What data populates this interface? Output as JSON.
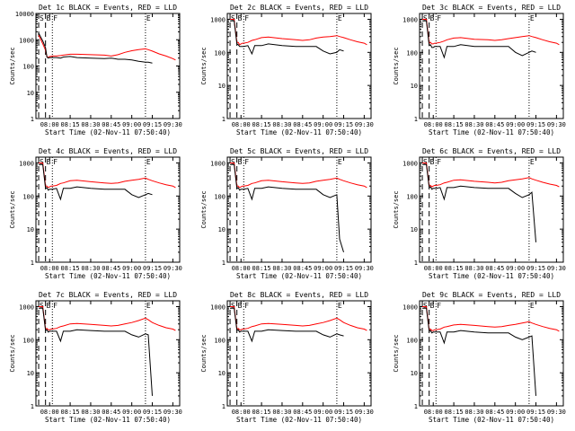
{
  "figure": {
    "xlabel": "Start Time (02-Nov-11 07:50:40)",
    "ylabel": "Counts/sec",
    "colors": {
      "events": "#000000",
      "lld": "#ff0000",
      "background": "#ffffff",
      "axes": "#000000"
    },
    "marker_labels": [
      "S",
      "B",
      "F",
      "E"
    ]
  },
  "chart_data": [
    {
      "type": "line",
      "title": "Det 1c BLACK = Events, RED = LLD",
      "x": [
        "07:52",
        "07:55",
        "07:57",
        "07:58",
        "07:59",
        "08:00",
        "08:01",
        "08:02",
        "08:05",
        "08:08",
        "08:10",
        "08:15",
        "08:20",
        "08:30",
        "08:40",
        "08:45",
        "08:50",
        "08:55",
        "09:00",
        "09:05",
        "09:10",
        "09:12",
        "09:15",
        "09:20",
        "09:25",
        "09:30",
        "09:32"
      ],
      "xticks": [
        "08:00",
        "08:15",
        "08:30",
        "08:45",
        "09:00",
        "09:15",
        "09:30"
      ],
      "yticks": [
        "1",
        "10",
        "100",
        "1000",
        "10000"
      ],
      "ylim": [
        1,
        10000
      ],
      "yscale": "log",
      "markers": [
        "07:52",
        "07:57",
        "08:02",
        "09:10"
      ],
      "series": [
        {
          "role": "lld",
          "values": [
            1500,
            700,
            400,
            230,
            210,
            230,
            230,
            240,
            240,
            250,
            260,
            280,
            280,
            270,
            260,
            240,
            270,
            330,
            380,
            420,
            450,
            420,
            370,
            290,
            240,
            190,
            170
          ]
        },
        {
          "role": "events",
          "values": [
            1800,
            900,
            500,
            220,
            200,
            210,
            210,
            210,
            210,
            200,
            220,
            230,
            210,
            200,
            190,
            200,
            180,
            180,
            170,
            150,
            140,
            140,
            130,
            null,
            null,
            null,
            null
          ]
        }
      ]
    },
    {
      "type": "line",
      "title": "Det 2c BLACK = Events, RED = LLD",
      "x": [
        "07:52",
        "07:55",
        "07:57",
        "07:58",
        "07:59",
        "08:00",
        "08:01",
        "08:02",
        "08:05",
        "08:08",
        "08:10",
        "08:15",
        "08:20",
        "08:30",
        "08:40",
        "08:45",
        "08:50",
        "08:55",
        "09:00",
        "09:05",
        "09:10",
        "09:12",
        "09:15",
        "09:20",
        "09:25",
        "09:30",
        "09:32"
      ],
      "xticks": [
        "08:00",
        "08:15",
        "08:30",
        "08:45",
        "09:00",
        "09:15",
        "09:30"
      ],
      "yticks": [
        "1",
        "10",
        "100",
        "1000"
      ],
      "ylim": [
        1,
        1500
      ],
      "yscale": "log",
      "markers": [
        "07:52",
        "07:57",
        "08:02",
        "09:10"
      ],
      "series": [
        {
          "role": "lld",
          "values": [
            1000,
            1000,
            200,
            200,
            170,
            180,
            190,
            190,
            200,
            230,
            240,
            280,
            290,
            260,
            240,
            230,
            240,
            270,
            290,
            300,
            320,
            300,
            280,
            240,
            210,
            190,
            170
          ]
        },
        {
          "role": "events",
          "values": [
            900,
            900,
            180,
            170,
            150,
            150,
            150,
            150,
            160,
            90,
            160,
            160,
            180,
            160,
            150,
            150,
            150,
            150,
            110,
            90,
            100,
            120,
            110,
            null,
            null,
            null,
            null
          ]
        }
      ]
    },
    {
      "type": "line",
      "title": "Det 3c BLACK = Events, RED = LLD",
      "x": [
        "07:52",
        "07:55",
        "07:57",
        "07:58",
        "07:59",
        "08:00",
        "08:01",
        "08:02",
        "08:05",
        "08:08",
        "08:10",
        "08:15",
        "08:20",
        "08:30",
        "08:40",
        "08:45",
        "08:50",
        "08:55",
        "09:00",
        "09:05",
        "09:10",
        "09:12",
        "09:15",
        "09:20",
        "09:25",
        "09:30",
        "09:32"
      ],
      "xticks": [
        "08:00",
        "08:15",
        "08:30",
        "08:45",
        "09:00",
        "09:15",
        "09:30"
      ],
      "yticks": [
        "1",
        "10",
        "100",
        "1000"
      ],
      "ylim": [
        1,
        1500
      ],
      "yscale": "log",
      "markers": [
        "07:52",
        "07:57",
        "08:02",
        "09:10"
      ],
      "series": [
        {
          "role": "lld",
          "values": [
            1000,
            1000,
            190,
            200,
            180,
            180,
            190,
            190,
            200,
            220,
            240,
            270,
            280,
            250,
            240,
            230,
            240,
            260,
            280,
            300,
            320,
            300,
            280,
            240,
            210,
            190,
            170
          ]
        },
        {
          "role": "events",
          "values": [
            900,
            900,
            160,
            170,
            140,
            140,
            150,
            150,
            150,
            70,
            150,
            150,
            170,
            150,
            150,
            150,
            150,
            150,
            100,
            80,
            100,
            110,
            100,
            null,
            null,
            null,
            null
          ]
        }
      ]
    },
    {
      "type": "line",
      "title": "Det 4c BLACK = Events, RED = LLD",
      "x": [
        "07:52",
        "07:55",
        "07:57",
        "07:58",
        "07:59",
        "08:00",
        "08:01",
        "08:02",
        "08:05",
        "08:08",
        "08:10",
        "08:15",
        "08:20",
        "08:30",
        "08:40",
        "08:45",
        "08:50",
        "08:55",
        "09:00",
        "09:05",
        "09:10",
        "09:12",
        "09:15",
        "09:20",
        "09:25",
        "09:30",
        "09:32"
      ],
      "xticks": [
        "08:00",
        "08:15",
        "08:30",
        "08:45",
        "09:00",
        "09:15",
        "09:30"
      ],
      "yticks": [
        "1",
        "10",
        "100",
        "1000"
      ],
      "ylim": [
        1,
        1500
      ],
      "yscale": "log",
      "markers": [
        "07:52",
        "07:57",
        "08:02",
        "09:10"
      ],
      "series": [
        {
          "role": "lld",
          "values": [
            1000,
            1000,
            200,
            200,
            180,
            190,
            200,
            200,
            210,
            240,
            250,
            290,
            300,
            270,
            250,
            240,
            250,
            280,
            300,
            320,
            350,
            320,
            290,
            250,
            220,
            200,
            180
          ]
        },
        {
          "role": "events",
          "values": [
            900,
            900,
            170,
            180,
            150,
            160,
            160,
            160,
            170,
            80,
            170,
            170,
            190,
            170,
            160,
            160,
            160,
            160,
            110,
            90,
            110,
            120,
            110,
            null,
            null,
            null,
            null
          ]
        }
      ]
    },
    {
      "type": "line",
      "title": "Det 5c BLACK = Events, RED = LLD",
      "x": [
        "07:52",
        "07:55",
        "07:57",
        "07:58",
        "07:59",
        "08:00",
        "08:01",
        "08:02",
        "08:05",
        "08:08",
        "08:10",
        "08:15",
        "08:20",
        "08:30",
        "08:40",
        "08:45",
        "08:50",
        "08:55",
        "09:00",
        "09:05",
        "09:10",
        "09:12",
        "09:15",
        "09:20",
        "09:25",
        "09:30",
        "09:32"
      ],
      "xticks": [
        "08:00",
        "08:15",
        "08:30",
        "08:45",
        "09:00",
        "09:15",
        "09:30"
      ],
      "yticks": [
        "1",
        "10",
        "100",
        "1000"
      ],
      "ylim": [
        1,
        1500
      ],
      "yscale": "log",
      "markers": [
        "07:52",
        "07:57",
        "08:02",
        "09:10"
      ],
      "series": [
        {
          "role": "lld",
          "values": [
            1000,
            1000,
            200,
            200,
            180,
            190,
            200,
            200,
            210,
            240,
            250,
            290,
            300,
            270,
            250,
            240,
            250,
            280,
            300,
            320,
            350,
            320,
            290,
            250,
            220,
            200,
            180
          ]
        },
        {
          "role": "events",
          "values": [
            900,
            900,
            170,
            180,
            150,
            160,
            160,
            160,
            170,
            80,
            170,
            170,
            190,
            170,
            160,
            160,
            160,
            160,
            110,
            90,
            110,
            5,
            2,
            null,
            null,
            null,
            null
          ]
        }
      ]
    },
    {
      "type": "line",
      "title": "Det 6c BLACK = Events, RED = LLD",
      "x": [
        "07:52",
        "07:55",
        "07:57",
        "07:58",
        "07:59",
        "08:00",
        "08:01",
        "08:02",
        "08:05",
        "08:08",
        "08:10",
        "08:15",
        "08:20",
        "08:30",
        "08:40",
        "08:45",
        "08:50",
        "08:55",
        "09:00",
        "09:05",
        "09:10",
        "09:12",
        "09:15",
        "09:20",
        "09:25",
        "09:30",
        "09:32"
      ],
      "xticks": [
        "08:00",
        "08:15",
        "08:30",
        "08:45",
        "09:00",
        "09:15",
        "09:30"
      ],
      "yticks": [
        "1",
        "10",
        "100",
        "1000"
      ],
      "ylim": [
        1,
        1500
      ],
      "yscale": "log",
      "markers": [
        "07:52",
        "07:57",
        "08:02",
        "09:10"
      ],
      "series": [
        {
          "role": "lld",
          "values": [
            1000,
            1000,
            200,
            210,
            190,
            200,
            210,
            210,
            220,
            250,
            260,
            300,
            310,
            280,
            260,
            250,
            260,
            290,
            310,
            330,
            360,
            330,
            300,
            260,
            230,
            210,
            190
          ]
        },
        {
          "role": "events",
          "values": [
            900,
            900,
            180,
            190,
            160,
            170,
            170,
            170,
            180,
            80,
            180,
            180,
            200,
            180,
            170,
            170,
            170,
            170,
            120,
            90,
            110,
            130,
            4,
            null,
            null,
            null,
            null
          ]
        }
      ]
    },
    {
      "type": "line",
      "title": "Det 7c BLACK = Events, RED = LLD",
      "x": [
        "07:52",
        "07:55",
        "07:57",
        "07:58",
        "07:59",
        "08:00",
        "08:01",
        "08:02",
        "08:05",
        "08:08",
        "08:10",
        "08:15",
        "08:20",
        "08:30",
        "08:40",
        "08:45",
        "08:50",
        "08:55",
        "09:00",
        "09:05",
        "09:10",
        "09:12",
        "09:15",
        "09:20",
        "09:25",
        "09:30",
        "09:32"
      ],
      "xticks": [
        "08:00",
        "08:15",
        "08:30",
        "08:45",
        "09:00",
        "09:15",
        "09:30"
      ],
      "yticks": [
        "1",
        "10",
        "100",
        "1000"
      ],
      "ylim": [
        1,
        1500
      ],
      "yscale": "log",
      "markers": [
        "07:52",
        "07:57",
        "08:02",
        "09:10"
      ],
      "series": [
        {
          "role": "lld",
          "values": [
            1000,
            1000,
            210,
            220,
            200,
            200,
            210,
            210,
            220,
            250,
            260,
            300,
            310,
            290,
            270,
            260,
            270,
            300,
            330,
            380,
            450,
            400,
            330,
            270,
            230,
            210,
            190
          ]
        },
        {
          "role": "events",
          "values": [
            900,
            900,
            190,
            200,
            170,
            180,
            180,
            180,
            180,
            90,
            180,
            180,
            200,
            190,
            180,
            180,
            180,
            180,
            140,
            120,
            150,
            140,
            2,
            null,
            null,
            null,
            null
          ]
        }
      ]
    },
    {
      "type": "line",
      "title": "Det 8c BLACK = Events, RED = LLD",
      "x": [
        "07:52",
        "07:55",
        "07:57",
        "07:58",
        "07:59",
        "08:00",
        "08:01",
        "08:02",
        "08:05",
        "08:08",
        "08:10",
        "08:15",
        "08:20",
        "08:30",
        "08:40",
        "08:45",
        "08:50",
        "08:55",
        "09:00",
        "09:05",
        "09:10",
        "09:12",
        "09:15",
        "09:20",
        "09:25",
        "09:30",
        "09:32"
      ],
      "xticks": [
        "08:00",
        "08:15",
        "08:30",
        "08:45",
        "09:00",
        "09:15",
        "09:30"
      ],
      "yticks": [
        "1",
        "10",
        "100",
        "1000"
      ],
      "ylim": [
        1,
        1500
      ],
      "yscale": "log",
      "markers": [
        "07:52",
        "07:57",
        "08:02",
        "09:10"
      ],
      "series": [
        {
          "role": "lld",
          "values": [
            1000,
            1000,
            210,
            220,
            200,
            200,
            210,
            210,
            220,
            250,
            260,
            300,
            310,
            290,
            270,
            260,
            270,
            300,
            330,
            380,
            450,
            400,
            330,
            270,
            230,
            210,
            190
          ]
        },
        {
          "role": "events",
          "values": [
            900,
            900,
            190,
            200,
            170,
            180,
            180,
            180,
            180,
            90,
            180,
            180,
            200,
            190,
            180,
            180,
            180,
            180,
            140,
            120,
            150,
            140,
            130,
            null,
            null,
            null,
            null
          ]
        }
      ]
    },
    {
      "type": "line",
      "title": "Det 9c BLACK = Events, RED = LLD",
      "x": [
        "07:52",
        "07:55",
        "07:57",
        "07:58",
        "07:59",
        "08:00",
        "08:01",
        "08:02",
        "08:05",
        "08:08",
        "08:10",
        "08:15",
        "08:20",
        "08:30",
        "08:40",
        "08:45",
        "08:50",
        "08:55",
        "09:00",
        "09:05",
        "09:10",
        "09:12",
        "09:15",
        "09:20",
        "09:25",
        "09:30",
        "09:32"
      ],
      "xticks": [
        "08:00",
        "08:15",
        "08:30",
        "08:45",
        "09:00",
        "09:15",
        "09:30"
      ],
      "yticks": [
        "1",
        "10",
        "100",
        "1000"
      ],
      "ylim": [
        1,
        1500
      ],
      "yscale": "log",
      "markers": [
        "07:52",
        "07:57",
        "08:02",
        "09:10"
      ],
      "series": [
        {
          "role": "lld",
          "values": [
            1000,
            1000,
            200,
            210,
            190,
            190,
            200,
            200,
            210,
            240,
            250,
            280,
            290,
            270,
            250,
            240,
            250,
            270,
            290,
            320,
            350,
            320,
            290,
            250,
            220,
            200,
            180
          ]
        },
        {
          "role": "events",
          "values": [
            900,
            900,
            180,
            190,
            160,
            170,
            170,
            170,
            170,
            80,
            170,
            170,
            190,
            170,
            160,
            160,
            160,
            160,
            120,
            100,
            120,
            130,
            2,
            null,
            null,
            null,
            null
          ]
        }
      ]
    }
  ]
}
